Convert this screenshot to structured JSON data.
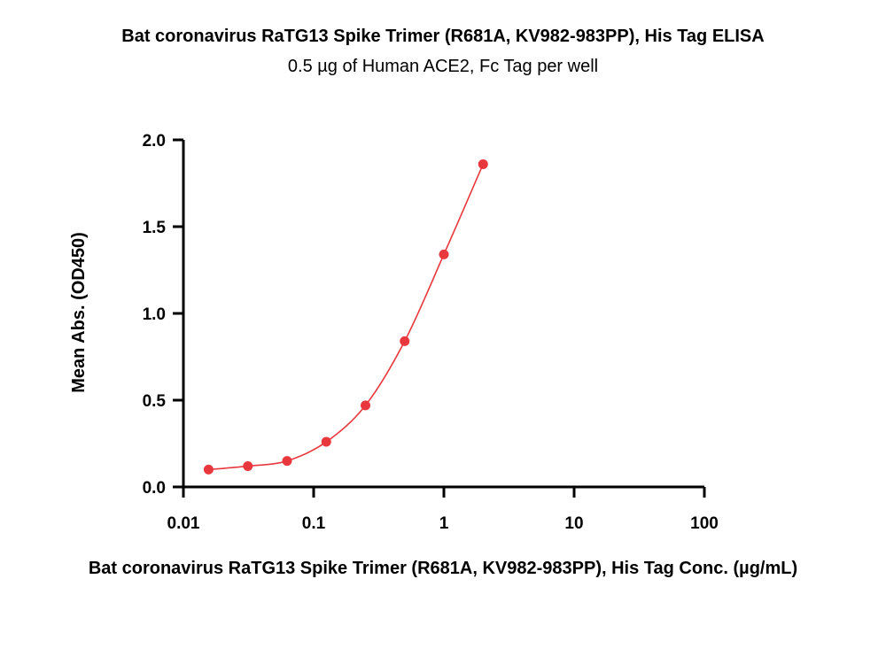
{
  "chart_data": {
    "type": "line",
    "title": "Bat coronavirus RaTG13 Spike Trimer (R681A, KV982-983PP), His Tag ELISA",
    "subtitle": "0.5 µg of Human ACE2, Fc Tag per well",
    "xlabel": "Bat coronavirus RaTG13 Spike Trimer (R681A, KV982-983PP), His Tag Conc. (µg/mL)",
    "ylabel": "Mean Abs. (OD450)",
    "x_scale": "log",
    "xlim": [
      0.01,
      100
    ],
    "ylim": [
      0,
      2.0
    ],
    "x_ticks": [
      0.01,
      0.1,
      1,
      10,
      100
    ],
    "x_tick_labels": [
      "0.01",
      "0.1",
      "1",
      "10",
      "100"
    ],
    "y_ticks": [
      0,
      0.5,
      1.0,
      1.5,
      2.0
    ],
    "y_tick_labels": [
      "0.0",
      "0.5",
      "1.0",
      "1.5",
      "2.0"
    ],
    "grid": false,
    "series": [
      {
        "color": "#e8383d",
        "x": [
          0.0156,
          0.03125,
          0.0625,
          0.125,
          0.25,
          0.5,
          1,
          2
        ],
        "y": [
          0.1,
          0.12,
          0.15,
          0.26,
          0.47,
          0.84,
          1.34,
          1.86
        ]
      }
    ]
  }
}
